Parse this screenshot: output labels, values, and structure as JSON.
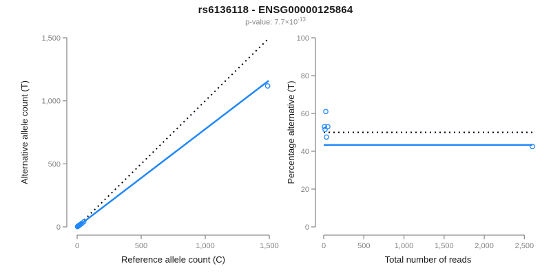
{
  "header": {
    "title": "rs6136118 - ENSG00000125864",
    "subtitle_base": "p-value: 7.7×10",
    "subtitle_exp": "-13"
  },
  "colors": {
    "accent_blue": "#2187FB",
    "axis_gray": "#8C8C8C",
    "tick_label_gray": "#808080",
    "dotted_black": "#000000",
    "axis_title_black": "#1a1a1a"
  },
  "chart_data": [
    {
      "type": "scatter",
      "panel": "left",
      "xlabel": "Reference allele count (C)",
      "ylabel": "Alternative allele count (T)",
      "xlim": [
        0,
        1500
      ],
      "ylim": [
        0,
        1500
      ],
      "xticks": [
        0,
        500,
        1000,
        1500
      ],
      "yticks": [
        0,
        500,
        1000,
        1500
      ],
      "grid": false,
      "point_style": "open-circle",
      "points": [
        [
          3,
          2
        ],
        [
          6,
          5
        ],
        [
          9,
          7
        ],
        [
          14,
          11
        ],
        [
          20,
          15
        ],
        [
          28,
          21
        ],
        [
          38,
          29
        ],
        [
          52,
          40
        ],
        [
          1487,
          1118
        ]
      ],
      "lines": [
        {
          "name": "identity-line",
          "style": "dotted",
          "color": "#000000",
          "width": 2,
          "from": [
            0,
            0
          ],
          "to": [
            1500,
            1500
          ]
        },
        {
          "name": "fit-line",
          "style": "solid",
          "color": "#2187FB",
          "width": 2.5,
          "from": [
            0,
            0
          ],
          "to": [
            1495,
            1160
          ]
        }
      ]
    },
    {
      "type": "scatter",
      "panel": "right",
      "xlabel": "Total number of reads",
      "ylabel": "Percentage alternative (T)",
      "xlim": [
        0,
        2600
      ],
      "ylim": [
        0,
        100
      ],
      "xticks": [
        0,
        500,
        1000,
        1500,
        2000,
        2500
      ],
      "yticks": [
        0,
        20,
        40,
        60,
        80,
        100
      ],
      "grid": false,
      "point_style": "open-circle",
      "points": [
        [
          26,
          61
        ],
        [
          10,
          53
        ],
        [
          51,
          53
        ],
        [
          17,
          51.5
        ],
        [
          34,
          47.5
        ],
        [
          2600,
          42.5
        ]
      ],
      "lines": [
        {
          "name": "expected-line",
          "style": "dotted",
          "color": "#000000",
          "width": 2,
          "from": [
            0,
            50
          ],
          "to": [
            2600,
            50
          ]
        },
        {
          "name": "observed-line",
          "style": "solid",
          "color": "#2187FB",
          "width": 2.5,
          "from": [
            0,
            43.3
          ],
          "to": [
            2600,
            43.3
          ]
        }
      ]
    }
  ]
}
